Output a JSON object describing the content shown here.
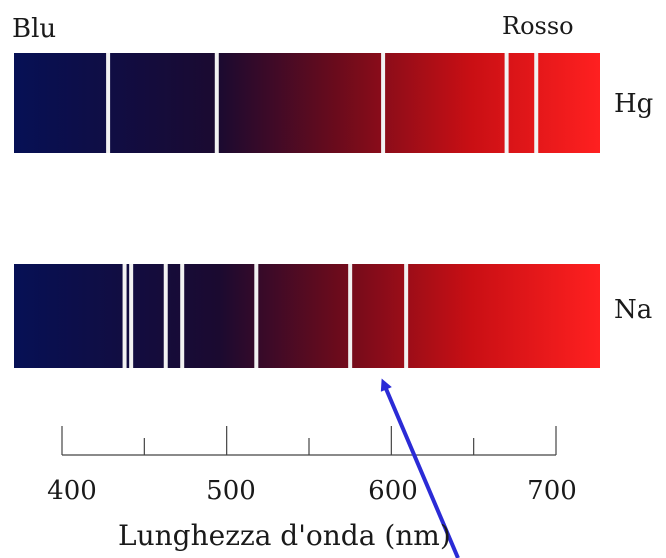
{
  "labels": {
    "blue_end": "Blu",
    "red_end": "Rosso"
  },
  "spectra": [
    {
      "element": "Hg",
      "emission_lines_nm": [
        428,
        494,
        595,
        670,
        688
      ]
    },
    {
      "element": "Na",
      "emission_lines_nm": [
        438,
        442,
        463,
        473,
        518,
        575,
        609
      ]
    }
  ],
  "axis": {
    "title": "Lunghezza d'onda (nm)",
    "range_nm": [
      400,
      700
    ],
    "major_ticks": [
      400,
      500,
      600,
      700
    ],
    "minor_ticks": [
      450,
      550,
      650
    ],
    "tick_labels": [
      "400",
      "500",
      "600",
      "700"
    ]
  },
  "annotation": {
    "type": "arrow",
    "points_to_nm": 590,
    "color": "#2b2bd6"
  },
  "colors": {
    "blue": "#061055",
    "mid": "#5a0a1a",
    "red": "#ff1a1a",
    "line": "#f2f2f2"
  }
}
